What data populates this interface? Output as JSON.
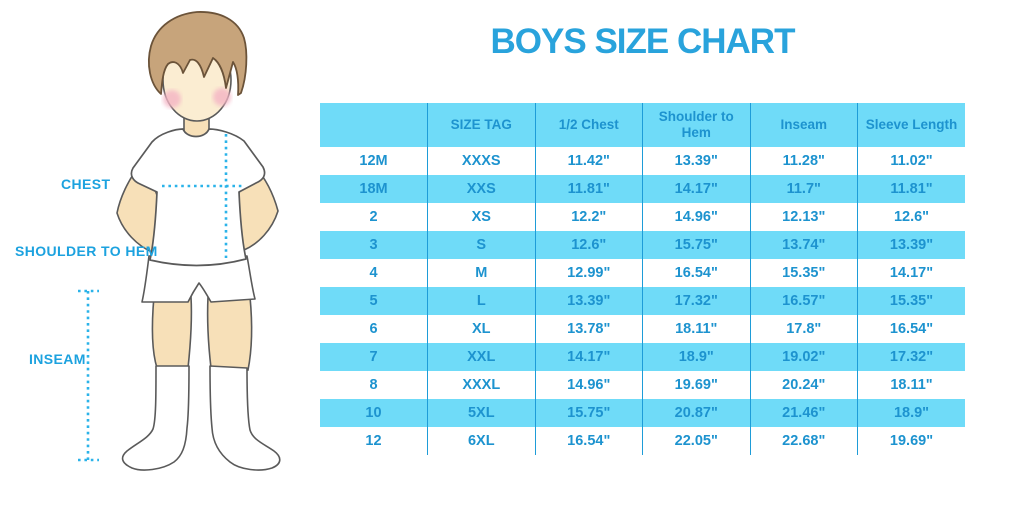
{
  "title": "BOYS SIZE CHART",
  "colors": {
    "accent_blue": "#29a3dc",
    "table_fill": "#6fdbf8",
    "table_divider": "#1e9cd8",
    "table_text": "#1d93cf",
    "dotted_line": "#2bb3e9"
  },
  "figure": {
    "illustration": "boy-standing-front",
    "labels": {
      "chest": "CHEST",
      "shoulder_to_hem": "SHOULDER TO HEM",
      "inseam": "INSEAM"
    }
  },
  "chart_data": {
    "type": "table",
    "title": "BOYS SIZE CHART",
    "columns": [
      "",
      "SIZE TAG",
      "1/2 Chest",
      "Shoulder to Hem",
      "Inseam",
      "Sleeve Length"
    ],
    "rows": [
      [
        "12M",
        "XXXS",
        "11.42\"",
        "13.39\"",
        "11.28\"",
        "11.02\""
      ],
      [
        "18M",
        "XXS",
        "11.81\"",
        "14.17\"",
        "11.7\"",
        "11.81\""
      ],
      [
        "2",
        "XS",
        "12.2\"",
        "14.96\"",
        "12.13\"",
        "12.6\""
      ],
      [
        "3",
        "S",
        "12.6\"",
        "15.75\"",
        "13.74\"",
        "13.39\""
      ],
      [
        "4",
        "M",
        "12.99\"",
        "16.54\"",
        "15.35\"",
        "14.17\""
      ],
      [
        "5",
        "L",
        "13.39\"",
        "17.32\"",
        "16.57\"",
        "15.35\""
      ],
      [
        "6",
        "XL",
        "13.78\"",
        "18.11\"",
        "17.8\"",
        "16.54\""
      ],
      [
        "7",
        "XXL",
        "14.17\"",
        "18.9\"",
        "19.02\"",
        "17.32\""
      ],
      [
        "8",
        "XXXL",
        "14.96\"",
        "19.69\"",
        "20.24\"",
        "18.11\""
      ],
      [
        "10",
        "5XL",
        "15.75\"",
        "20.87\"",
        "21.46\"",
        "18.9\""
      ],
      [
        "12",
        "6XL",
        "16.54\"",
        "22.05\"",
        "22.68\"",
        "19.69\""
      ]
    ]
  }
}
